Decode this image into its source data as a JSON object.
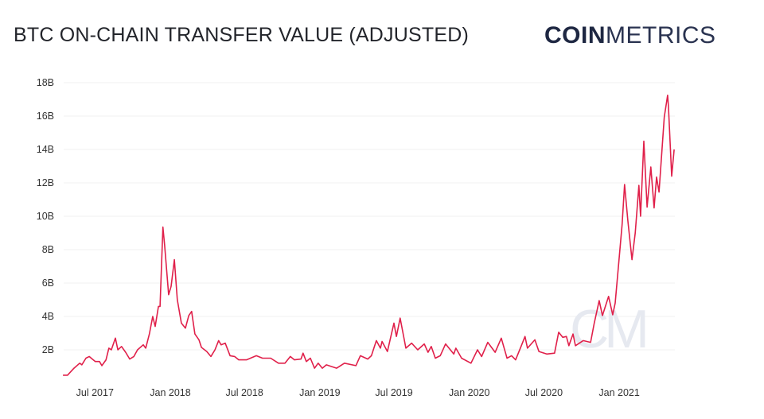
{
  "header": {
    "title": "BTC ON-CHAIN TRANSFER VALUE (ADJUSTED)",
    "logo_bold": "COIN",
    "logo_light": "METRICS"
  },
  "watermark": "CM",
  "chart_data": {
    "type": "line",
    "title": "BTC ON-CHAIN TRANSFER VALUE (ADJUSTED)",
    "xlabel": "",
    "ylabel": "",
    "ylim": [
      0,
      18000000000
    ],
    "grid": true,
    "line_color": "#e0204a",
    "y_ticks": [
      {
        "value": 2000000000,
        "label": "2B"
      },
      {
        "value": 4000000000,
        "label": "4B"
      },
      {
        "value": 6000000000,
        "label": "6B"
      },
      {
        "value": 8000000000,
        "label": "8B"
      },
      {
        "value": 10000000000,
        "label": "10B"
      },
      {
        "value": 12000000000,
        "label": "12B"
      },
      {
        "value": 14000000000,
        "label": "14B"
      },
      {
        "value": 16000000000,
        "label": "16B"
      },
      {
        "value": 18000000000,
        "label": "18B"
      }
    ],
    "x_ticks": [
      {
        "date": "2017-07-01",
        "label": "Jul 2017"
      },
      {
        "date": "2018-01-01",
        "label": "Jan 2018"
      },
      {
        "date": "2018-07-01",
        "label": "Jul 2018"
      },
      {
        "date": "2019-01-01",
        "label": "Jan 2019"
      },
      {
        "date": "2019-07-01",
        "label": "Jul 2019"
      },
      {
        "date": "2020-01-01",
        "label": "Jan 2020"
      },
      {
        "date": "2020-07-01",
        "label": "Jul 2020"
      },
      {
        "date": "2021-01-01",
        "label": "Jan 2021"
      }
    ],
    "series": [
      {
        "x": [
          "2017-04-14",
          "2017-04-25",
          "2017-05-11",
          "2017-05-25",
          "2017-05-30",
          "2017-06-09",
          "2017-06-17",
          "2017-06-27",
          "2017-07-02",
          "2017-07-12",
          "2017-07-18",
          "2017-07-28",
          "2017-08-04",
          "2017-08-10",
          "2017-08-20",
          "2017-08-26",
          "2017-09-04",
          "2017-09-14",
          "2017-09-24",
          "2017-10-04",
          "2017-10-13",
          "2017-10-27",
          "2017-11-02",
          "2017-11-11",
          "2017-11-19",
          "2017-11-25",
          "2017-12-03",
          "2017-12-07",
          "2017-12-14",
          "2017-12-18",
          "2017-12-28",
          "2018-01-03",
          "2018-01-11",
          "2018-01-18",
          "2018-01-28",
          "2018-02-07",
          "2018-02-15",
          "2018-02-22",
          "2018-03-02",
          "2018-03-12",
          "2018-03-18",
          "2018-03-31",
          "2018-04-10",
          "2018-04-20",
          "2018-04-29",
          "2018-05-05",
          "2018-05-15",
          "2018-05-27",
          "2018-06-07",
          "2018-06-17",
          "2018-07-06",
          "2018-07-30",
          "2018-08-14",
          "2018-09-03",
          "2018-09-22",
          "2018-10-08",
          "2018-10-21",
          "2018-10-31",
          "2018-11-16",
          "2018-11-21",
          "2018-11-29",
          "2018-12-09",
          "2018-12-19",
          "2018-12-28",
          "2019-01-07",
          "2019-01-17",
          "2019-02-11",
          "2019-03-02",
          "2019-03-30",
          "2019-04-10",
          "2019-04-28",
          "2019-05-07",
          "2019-05-19",
          "2019-05-29",
          "2019-06-02",
          "2019-06-15",
          "2019-07-01",
          "2019-07-07",
          "2019-07-16",
          "2019-07-30",
          "2019-08-13",
          "2019-08-28",
          "2019-09-13",
          "2019-09-22",
          "2019-09-30",
          "2019-10-10",
          "2019-10-22",
          "2019-11-04",
          "2019-11-24",
          "2019-11-29",
          "2019-12-13",
          "2020-01-05",
          "2020-01-21",
          "2020-01-31",
          "2020-02-15",
          "2020-03-04",
          "2020-03-19",
          "2020-04-02",
          "2020-04-13",
          "2020-04-23",
          "2020-05-07",
          "2020-05-16",
          "2020-05-22",
          "2020-06-09",
          "2020-06-19",
          "2020-07-08",
          "2020-07-27",
          "2020-08-06",
          "2020-08-16",
          "2020-08-25",
          "2020-08-31",
          "2020-09-10",
          "2020-09-16",
          "2020-10-05",
          "2020-10-23",
          "2020-11-01",
          "2020-11-13",
          "2020-11-21",
          "2020-12-06",
          "2020-12-16",
          "2020-12-22",
          "2021-01-01",
          "2021-01-08",
          "2021-01-14",
          "2021-01-22",
          "2021-02-01",
          "2021-02-09",
          "2021-02-18",
          "2021-02-22",
          "2021-03-02",
          "2021-03-10",
          "2021-03-19",
          "2021-03-27",
          "2021-04-02",
          "2021-04-08",
          "2021-04-21",
          "2021-04-29",
          "2021-05-01",
          "2021-05-09",
          "2021-05-15"
        ],
        "y": [
          0.48,
          0.48,
          0.9,
          1.2,
          1.1,
          1.5,
          1.6,
          1.4,
          1.3,
          1.3,
          1.05,
          1.4,
          2.1,
          2.0,
          2.7,
          2.0,
          2.2,
          1.85,
          1.45,
          1.6,
          2.0,
          2.3,
          2.1,
          2.95,
          4.0,
          3.4,
          4.6,
          4.6,
          9.35,
          8.3,
          5.3,
          5.8,
          7.4,
          5.0,
          3.6,
          3.3,
          4.05,
          4.3,
          2.95,
          2.6,
          2.15,
          1.9,
          1.6,
          2.0,
          2.55,
          2.3,
          2.4,
          1.65,
          1.6,
          1.4,
          1.4,
          1.65,
          1.5,
          1.5,
          1.2,
          1.2,
          1.6,
          1.4,
          1.45,
          1.8,
          1.3,
          1.5,
          0.9,
          1.2,
          0.9,
          1.1,
          0.9,
          1.2,
          1.05,
          1.65,
          1.45,
          1.65,
          2.55,
          2.1,
          2.5,
          1.9,
          3.6,
          2.8,
          3.9,
          2.1,
          2.4,
          2.0,
          2.35,
          1.85,
          2.2,
          1.5,
          1.65,
          2.35,
          1.75,
          2.1,
          1.5,
          1.2,
          2.0,
          1.6,
          2.45,
          1.85,
          2.7,
          1.5,
          1.65,
          1.4,
          2.25,
          2.8,
          2.1,
          2.6,
          1.9,
          1.75,
          1.8,
          3.05,
          2.75,
          2.8,
          2.25,
          2.95,
          2.25,
          2.55,
          2.45,
          3.6,
          4.95,
          4.05,
          5.2,
          4.1,
          4.8,
          7.55,
          9.5,
          11.9,
          9.75,
          7.4,
          9.0,
          11.85,
          10.0,
          14.5,
          10.55,
          12.95,
          10.5,
          12.35,
          11.45,
          15.95,
          17.25,
          16.6,
          12.4,
          14.0
        ],
        "y_unit": "billion USD"
      }
    ]
  }
}
